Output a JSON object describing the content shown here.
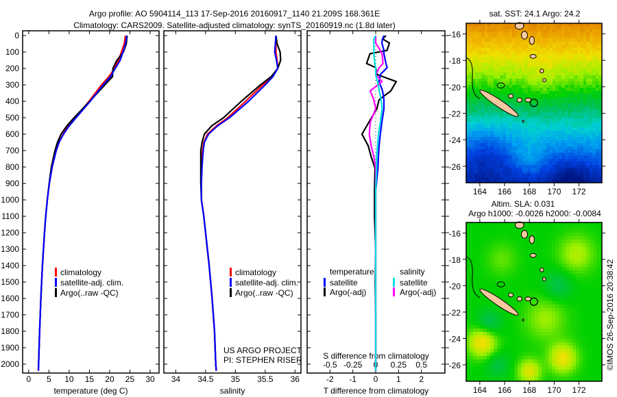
{
  "title": {
    "line1": "Argo profile: AO 5904114_113 17-Sep-2016 20160917_1140 21.209S 168.361E",
    "line2": "Climatology: CARS2009. Satellite-adjusted climatology: synTS_20160919.nc (1.8d later)"
  },
  "credits": {
    "project": "US ARGO PROJECT",
    "pi": "PI: STEPHEN RISER"
  },
  "timestamp": "©IMOS 26-Sep-2016 20:38:42",
  "chart_data": [
    {
      "type": "line",
      "id": "temperature",
      "xlabel": "temperature (deg C)",
      "ylabel": "depth",
      "xlim": [
        -1.5,
        32.2
      ],
      "ylim": [
        2055,
        0
      ],
      "xticks": [
        "0",
        "5",
        "10",
        "15",
        "20",
        "25",
        "30"
      ],
      "yticks": [
        "0",
        "100",
        "200",
        "300",
        "400",
        "500",
        "600",
        "700",
        "800",
        "900",
        "1000",
        "1100",
        "1200",
        "1300",
        "1400",
        "1500",
        "1600",
        "1700",
        "1800",
        "1900",
        "2000"
      ],
      "legend": [
        {
          "label": "climatology",
          "color": "#ff0000"
        },
        {
          "label": "satellite-adj. clim.",
          "color": "#0000ff"
        },
        {
          "label": "Argo(..raw -QC)",
          "color": "#000000"
        }
      ],
      "depth": [
        0,
        50,
        100,
        150,
        200,
        250,
        300,
        400,
        500,
        550,
        600,
        650,
        700,
        800,
        900,
        1000,
        1100,
        1200,
        1400,
        1600,
        1800,
        2000,
        2040
      ],
      "series": [
        {
          "name": "climatology",
          "color": "#ff0000",
          "values": [
            23.9,
            23.6,
            22.9,
            22.2,
            21.2,
            19.8,
            18.0,
            14.9,
            11.5,
            9.8,
            8.5,
            7.5,
            6.8,
            5.8,
            5.1,
            4.6,
            4.2,
            3.9,
            3.4,
            3.0,
            2.7,
            2.45,
            2.4
          ]
        },
        {
          "name": "Argo(..raw -QC)",
          "color": "#000000",
          "values": [
            24.3,
            24.1,
            23.4,
            21.8,
            20.8,
            20.7,
            18.8,
            15.1,
            11.2,
            9.4,
            8.0,
            7.1,
            6.5,
            5.6,
            5.05,
            4.6,
            4.2,
            3.9,
            3.4,
            3.0,
            2.7,
            2.45,
            2.4
          ]
        },
        {
          "name": "satellite-adj. clim.",
          "color": "#0000ff",
          "values": [
            24.2,
            23.9,
            23.3,
            22.6,
            21.4,
            20.2,
            18.4,
            15.2,
            11.7,
            10.0,
            8.6,
            7.5,
            6.8,
            5.8,
            5.1,
            4.6,
            4.2,
            3.9,
            3.4,
            3.0,
            2.7,
            2.45,
            2.4
          ]
        }
      ]
    },
    {
      "type": "line",
      "id": "salinity",
      "xlabel": "salinity",
      "xlim": [
        33.8,
        36.1
      ],
      "ylim": [
        2055,
        0
      ],
      "xticks": [
        "34",
        "34.5",
        "35",
        "35.5",
        "36"
      ],
      "legend": [
        {
          "label": "climatology",
          "color": "#ff0000"
        },
        {
          "label": "satellite-adj. clim.",
          "color": "#0000ff"
        },
        {
          "label": "Argo(..raw -QC)",
          "color": "#000000"
        }
      ],
      "depth": [
        0,
        50,
        100,
        150,
        200,
        250,
        300,
        400,
        500,
        550,
        600,
        650,
        700,
        800,
        900,
        1000,
        1100,
        1200,
        1400,
        1600,
        1800,
        2000,
        2040
      ],
      "series": [
        {
          "name": "climatology",
          "color": "#ff0000",
          "values": [
            35.68,
            35.68,
            35.68,
            35.7,
            35.71,
            35.62,
            35.46,
            35.17,
            34.87,
            34.68,
            34.53,
            34.47,
            34.45,
            34.43,
            34.43,
            34.43,
            34.47,
            34.5,
            34.56,
            34.61,
            34.65,
            34.67,
            34.68
          ]
        },
        {
          "name": "Argo(..raw -QC)",
          "color": "#000000",
          "values": [
            35.68,
            35.7,
            35.75,
            35.76,
            35.71,
            35.6,
            35.42,
            35.1,
            34.8,
            34.6,
            34.48,
            34.44,
            34.42,
            34.42,
            34.42,
            34.43,
            34.47,
            34.5,
            34.56,
            34.61,
            34.65,
            34.67,
            34.68
          ]
        },
        {
          "name": "satellite-adj. clim.",
          "color": "#0000ff",
          "values": [
            35.68,
            35.67,
            35.66,
            35.69,
            35.71,
            35.63,
            35.5,
            35.22,
            34.9,
            34.7,
            34.55,
            34.48,
            34.46,
            34.44,
            34.43,
            34.43,
            34.47,
            34.5,
            34.56,
            34.61,
            34.65,
            34.67,
            34.68
          ]
        }
      ]
    },
    {
      "type": "line",
      "id": "difference",
      "xlabel": "T difference from climatology",
      "x2label": "S difference from climatology",
      "xlim": [
        -3.0,
        3.03
      ],
      "ylim": [
        2055,
        0
      ],
      "xticks": [
        "-2",
        "-1",
        "0",
        "1",
        "2"
      ],
      "x2ticks": [
        "-0.5",
        "-0.25",
        "0",
        "0.25",
        "0.5"
      ],
      "s_to_t_scale": 4,
      "legend": {
        "temperature_header": "temperature",
        "salinity_header": "salinity",
        "temperature": [
          {
            "label": "satellite",
            "color": "#0000ff"
          },
          {
            "label": "Argo(-adj)",
            "color": "#000000"
          }
        ],
        "salinity": [
          {
            "label": "satellite",
            "color": "#00e0e0"
          },
          {
            "label": "Argo(-adj)",
            "color": "#ff00ff"
          }
        ]
      },
      "depth": [
        0,
        20,
        45,
        90,
        110,
        170,
        195,
        237,
        280,
        337,
        390,
        445,
        528,
        600,
        670,
        736,
        807,
        945,
        1100,
        1300,
        1500,
        1700,
        1900,
        2040
      ],
      "series": [
        {
          "name": "T Argo(-adj)",
          "kind": "T",
          "color": "#000000",
          "values": [
            0.45,
            0.3,
            0.6,
            0.5,
            -0.25,
            -0.4,
            0.0,
            0.06,
            0.9,
            0.66,
            0.15,
            0.05,
            -0.3,
            -0.6,
            -0.33,
            -0.2,
            -0.03,
            -0.05,
            -0.05,
            0,
            -0.02,
            0,
            0,
            0
          ]
        },
        {
          "name": "T satellite",
          "kind": "T",
          "color": "#0000ff",
          "values": [
            0.36,
            0.3,
            0.27,
            0.36,
            0.36,
            0.45,
            0.5,
            0.2,
            0.15,
            0.3,
            0.36,
            0.36,
            0.27,
            0.2,
            0.15,
            0.12,
            0.1,
            0,
            0,
            0,
            0,
            0,
            0,
            0
          ]
        },
        {
          "name": "S Argo(-adj)",
          "kind": "S",
          "color": "#ff00ff",
          "values": [
            0,
            0,
            0,
            0.05,
            0.07,
            0.08,
            0.04,
            0,
            0.07,
            -0.06,
            -0.02,
            0,
            -0.06,
            -0.07,
            -0.05,
            -0.02,
            0,
            0,
            0,
            0,
            0,
            0,
            0,
            0
          ]
        },
        {
          "name": "S satellite",
          "kind": "S",
          "color": "#00e0e0",
          "values": [
            0,
            -0.02,
            -0.02,
            -0.02,
            -0.02,
            -0.01,
            0,
            0,
            0.02,
            0.04,
            0.06,
            0.07,
            0.05,
            0.03,
            0.02,
            0.01,
            0.01,
            0,
            0,
            0,
            0,
            0,
            0,
            0
          ]
        }
      ]
    }
  ],
  "maps": {
    "sst": {
      "title": "sat. SST: 24.1 Argo: 24.2"
    },
    "sla": {
      "title1": "Altim. SLA: 0.031",
      "title2": "Argo h1000: -0.0026 h2000: -0.0084"
    },
    "lon_ticks": [
      "164",
      "166",
      "168",
      "170",
      "172"
    ],
    "lat_ticks": [
      "-16",
      "-18",
      "-20",
      "-22",
      "-24",
      "-26"
    ],
    "lon_range": [
      162.9,
      173.85
    ],
    "lat_range": [
      -15.2,
      -27.25
    ],
    "float_position": {
      "lon": 168.361,
      "lat": -21.209
    },
    "land_color": "#f8c8a0"
  }
}
